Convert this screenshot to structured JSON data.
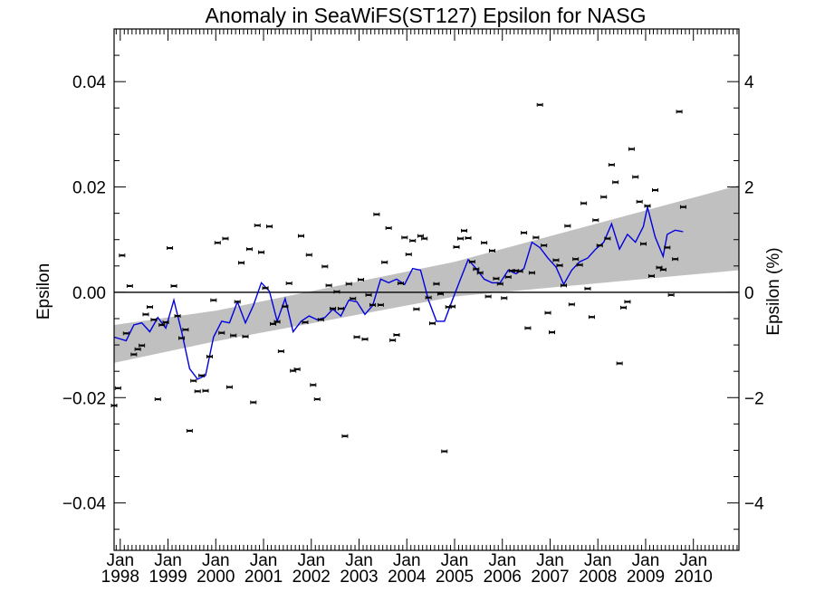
{
  "chart_data": {
    "type": "scatter",
    "title": "Anomaly in SeaWiFS(ST127) Epsilon for NASG",
    "ylabel": "Epsilon",
    "y2label": "Epsilon (%)",
    "xlim": [
      "1997-11-15",
      "2010-12-15"
    ],
    "ylim": [
      -0.049,
      0.05
    ],
    "y2lim": [
      -4.9,
      5.0
    ],
    "y_ticks": [
      {
        "value": 0.04,
        "label": "0.04"
      },
      {
        "value": 0.02,
        "label": "0.02"
      },
      {
        "value": 0.0,
        "label": "0.00"
      },
      {
        "value": -0.02,
        "label": "−0.02"
      },
      {
        "value": -0.04,
        "label": "−0.04"
      }
    ],
    "y2_ticks": [
      {
        "value": 4,
        "label": "4"
      },
      {
        "value": 2,
        "label": "2"
      },
      {
        "value": 0,
        "label": "0"
      },
      {
        "value": -2,
        "label": "−2"
      },
      {
        "value": -4,
        "label": "−4"
      }
    ],
    "x_ticks": [
      {
        "date": "1998-01-01",
        "month": "Jan",
        "year": "1998"
      },
      {
        "date": "1999-01-01",
        "month": "Jan",
        "year": "1999"
      },
      {
        "date": "2000-01-01",
        "month": "Jan",
        "year": "2000"
      },
      {
        "date": "2001-01-01",
        "month": "Jan",
        "year": "2001"
      },
      {
        "date": "2002-01-01",
        "month": "Jan",
        "year": "2002"
      },
      {
        "date": "2003-01-01",
        "month": "Jan",
        "year": "2003"
      },
      {
        "date": "2004-01-01",
        "month": "Jan",
        "year": "2004"
      },
      {
        "date": "2005-01-01",
        "month": "Jan",
        "year": "2005"
      },
      {
        "date": "2006-01-01",
        "month": "Jan",
        "year": "2006"
      },
      {
        "date": "2007-01-01",
        "month": "Jan",
        "year": "2007"
      },
      {
        "date": "2008-01-01",
        "month": "Jan",
        "year": "2008"
      },
      {
        "date": "2009-01-01",
        "month": "Jan",
        "year": "2009"
      },
      {
        "date": "2010-01-01",
        "month": "Jan",
        "year": "2010"
      }
    ],
    "grid": false,
    "zero_line": 0.0,
    "colors": {
      "points": "#000000",
      "smooth": "#0000dd",
      "band": "#c0c0c0"
    },
    "band": [
      {
        "x": "1997-11-15",
        "lower": -0.0134,
        "upper": -0.0062
      },
      {
        "x": "2000-01-01",
        "lower": -0.0093,
        "upper": -0.0035
      },
      {
        "x": "2005-01-01",
        "lower": -0.0008,
        "upper": 0.0058
      },
      {
        "x": "2010-12-15",
        "lower": 0.0042,
        "upper": 0.0203
      }
    ],
    "scatter_points": [
      {
        "x": "1997-11",
        "y": -0.0215
      },
      {
        "x": "1997-12",
        "y": -0.0182
      },
      {
        "x": "1998-01",
        "y": 0.007
      },
      {
        "x": "1998-02",
        "y": -0.0078
      },
      {
        "x": "1998-03",
        "y": 0.0012
      },
      {
        "x": "1998-04",
        "y": -0.0118
      },
      {
        "x": "1998-05",
        "y": -0.0108
      },
      {
        "x": "1998-06",
        "y": -0.0101
      },
      {
        "x": "1998-07",
        "y": -0.0042
      },
      {
        "x": "1998-08",
        "y": -0.0028
      },
      {
        "x": "1998-09",
        "y": -0.0052
      },
      {
        "x": "1998-10",
        "y": -0.0203
      },
      {
        "x": "1998-11",
        "y": -0.0062
      },
      {
        "x": "1998-12",
        "y": -0.0057
      },
      {
        "x": "1999-01",
        "y": 0.0084
      },
      {
        "x": "1999-02",
        "y": 0.0012
      },
      {
        "x": "1999-03",
        "y": -0.0045
      },
      {
        "x": "1999-04",
        "y": -0.0087
      },
      {
        "x": "1999-05",
        "y": -0.0071
      },
      {
        "x": "1999-06",
        "y": -0.0263
      },
      {
        "x": "1999-07",
        "y": -0.0168
      },
      {
        "x": "1999-08",
        "y": -0.0188
      },
      {
        "x": "1999-09",
        "y": -0.0158
      },
      {
        "x": "1999-10",
        "y": -0.0187
      },
      {
        "x": "1999-11",
        "y": -0.0122
      },
      {
        "x": "1999-12",
        "y": -0.0015
      },
      {
        "x": "2000-01",
        "y": 0.0094
      },
      {
        "x": "2000-02",
        "y": -0.0077
      },
      {
        "x": "2000-03",
        "y": 0.0102
      },
      {
        "x": "2000-04",
        "y": -0.018
      },
      {
        "x": "2000-05",
        "y": -0.0082
      },
      {
        "x": "2000-06",
        "y": -0.0018
      },
      {
        "x": "2000-07",
        "y": 0.0056
      },
      {
        "x": "2000-08",
        "y": -0.0084
      },
      {
        "x": "2000-09",
        "y": 0.0082
      },
      {
        "x": "2000-10",
        "y": -0.0209
      },
      {
        "x": "2000-11",
        "y": 0.0127
      },
      {
        "x": "2000-12",
        "y": 0.0076
      },
      {
        "x": "2001-01",
        "y": 0.0008
      },
      {
        "x": "2001-02",
        "y": 0.0125
      },
      {
        "x": "2001-03",
        "y": -0.006
      },
      {
        "x": "2001-04",
        "y": -0.0056
      },
      {
        "x": "2001-05",
        "y": -0.0112
      },
      {
        "x": "2001-06",
        "y": -0.0027
      },
      {
        "x": "2001-07",
        "y": 0.0017
      },
      {
        "x": "2001-08",
        "y": -0.0149
      },
      {
        "x": "2001-09",
        "y": -0.0146
      },
      {
        "x": "2001-10",
        "y": 0.0107
      },
      {
        "x": "2001-11",
        "y": -0.0057
      },
      {
        "x": "2001-12",
        "y": 0.0071
      },
      {
        "x": "2002-01",
        "y": -0.0176
      },
      {
        "x": "2002-02",
        "y": -0.0203
      },
      {
        "x": "2002-03",
        "y": -0.0052
      },
      {
        "x": "2002-04",
        "y": 0.0049
      },
      {
        "x": "2002-05",
        "y": 0.0013
      },
      {
        "x": "2002-06",
        "y": -0.0031
      },
      {
        "x": "2002-07",
        "y": 0.0001
      },
      {
        "x": "2002-08",
        "y": -0.0031
      },
      {
        "x": "2002-09",
        "y": -0.0273
      },
      {
        "x": "2002-10",
        "y": 0.0016
      },
      {
        "x": "2002-11",
        "y": -0.0012
      },
      {
        "x": "2002-12",
        "y": -0.0085
      },
      {
        "x": "2003-01",
        "y": 0.0024
      },
      {
        "x": "2003-02",
        "y": -0.0089
      },
      {
        "x": "2003-03",
        "y": -0.0005
      },
      {
        "x": "2003-04",
        "y": -0.0024
      },
      {
        "x": "2003-05",
        "y": 0.0148
      },
      {
        "x": "2003-06",
        "y": -0.0024
      },
      {
        "x": "2003-07",
        "y": 0.0057
      },
      {
        "x": "2003-08",
        "y": 0.0122
      },
      {
        "x": "2003-09",
        "y": -0.0091
      },
      {
        "x": "2003-10",
        "y": -0.0081
      },
      {
        "x": "2003-11",
        "y": 0.0017
      },
      {
        "x": "2003-12",
        "y": 0.0104
      },
      {
        "x": "2004-01",
        "y": 0.0072
      },
      {
        "x": "2004-02",
        "y": 0.0098
      },
      {
        "x": "2004-03",
        "y": -0.0032
      },
      {
        "x": "2004-04",
        "y": 0.0107
      },
      {
        "x": "2004-05",
        "y": 0.0102
      },
      {
        "x": "2004-06",
        "y": -0.001
      },
      {
        "x": "2004-07",
        "y": -0.0059
      },
      {
        "x": "2004-08",
        "y": 0.0016
      },
      {
        "x": "2004-09",
        "y": -0.0003
      },
      {
        "x": "2004-10",
        "y": -0.0302
      },
      {
        "x": "2004-11",
        "y": -0.0028
      },
      {
        "x": "2004-12",
        "y": -0.0027
      },
      {
        "x": "2005-01",
        "y": 0.0086
      },
      {
        "x": "2005-02",
        "y": 0.0102
      },
      {
        "x": "2005-03",
        "y": 0.0117
      },
      {
        "x": "2005-04",
        "y": 0.0103
      },
      {
        "x": "2005-05",
        "y": 0.0058
      },
      {
        "x": "2005-06",
        "y": 0.0044
      },
      {
        "x": "2005-07",
        "y": 0.0037
      },
      {
        "x": "2005-08",
        "y": 0.0094
      },
      {
        "x": "2005-09",
        "y": -0.0008
      },
      {
        "x": "2005-10",
        "y": 0.0079
      },
      {
        "x": "2005-11",
        "y": 0.0026
      },
      {
        "x": "2005-12",
        "y": 0.0016
      },
      {
        "x": "2006-01",
        "y": -0.0011
      },
      {
        "x": "2006-02",
        "y": 0.0029
      },
      {
        "x": "2006-03",
        "y": 0.0041
      },
      {
        "x": "2006-04",
        "y": 0.0041
      },
      {
        "x": "2006-05",
        "y": 0.004
      },
      {
        "x": "2006-06",
        "y": 0.0113
      },
      {
        "x": "2006-07",
        "y": -0.0068
      },
      {
        "x": "2006-08",
        "y": 0.0037
      },
      {
        "x": "2006-09",
        "y": 0.0104
      },
      {
        "x": "2006-10",
        "y": 0.0356
      },
      {
        "x": "2006-11",
        "y": 0.0089
      },
      {
        "x": "2006-12",
        "y": -0.0039
      },
      {
        "x": "2007-01",
        "y": -0.0076
      },
      {
        "x": "2007-02",
        "y": 0.0061
      },
      {
        "x": "2007-03",
        "y": 0.0051
      },
      {
        "x": "2007-04",
        "y": 0.0013
      },
      {
        "x": "2007-05",
        "y": 0.0126
      },
      {
        "x": "2007-06",
        "y": -0.0023
      },
      {
        "x": "2007-07",
        "y": 0.0063
      },
      {
        "x": "2007-08",
        "y": 0.0052
      },
      {
        "x": "2007-09",
        "y": 0.0169
      },
      {
        "x": "2007-10",
        "y": 0.0007
      },
      {
        "x": "2007-11",
        "y": -0.0047
      },
      {
        "x": "2007-12",
        "y": 0.0137
      },
      {
        "x": "2008-01",
        "y": 0.0089
      },
      {
        "x": "2008-02",
        "y": 0.0181
      },
      {
        "x": "2008-03",
        "y": 0.0102
      },
      {
        "x": "2008-04",
        "y": 0.0242
      },
      {
        "x": "2008-05",
        "y": 0.0209
      },
      {
        "x": "2008-06",
        "y": -0.0135
      },
      {
        "x": "2008-07",
        "y": -0.0029
      },
      {
        "x": "2008-08",
        "y": -0.0018
      },
      {
        "x": "2008-09",
        "y": 0.0272
      },
      {
        "x": "2008-10",
        "y": 0.0219
      },
      {
        "x": "2008-11",
        "y": 0.0172
      },
      {
        "x": "2008-12",
        "y": 0.0092
      },
      {
        "x": "2009-01",
        "y": 0.0164
      },
      {
        "x": "2009-02",
        "y": 0.0031
      },
      {
        "x": "2009-03",
        "y": 0.0194
      },
      {
        "x": "2009-04",
        "y": 0.0047
      },
      {
        "x": "2009-05",
        "y": 0.0043
      },
      {
        "x": "2009-06",
        "y": 0.0085
      },
      {
        "x": "2009-07",
        "y": -0.0005
      },
      {
        "x": "2009-08",
        "y": 0.0063
      },
      {
        "x": "2009-09",
        "y": 0.0343
      },
      {
        "x": "2009-10",
        "y": 0.0162
      }
    ],
    "smooth_line": [
      {
        "x": "1997-11",
        "y": -0.0085
      },
      {
        "x": "1998-02",
        "y": -0.0092
      },
      {
        "x": "1998-04",
        "y": -0.0062
      },
      {
        "x": "1998-06",
        "y": -0.0058
      },
      {
        "x": "1998-08",
        "y": -0.0075
      },
      {
        "x": "1998-10",
        "y": -0.0048
      },
      {
        "x": "1998-12",
        "y": -0.0068
      },
      {
        "x": "1999-02",
        "y": -0.0015
      },
      {
        "x": "1999-04",
        "y": -0.0075
      },
      {
        "x": "1999-06",
        "y": -0.0145
      },
      {
        "x": "1999-08",
        "y": -0.0165
      },
      {
        "x": "1999-10",
        "y": -0.0158
      },
      {
        "x": "1999-12",
        "y": -0.0085
      },
      {
        "x": "2000-02",
        "y": -0.0055
      },
      {
        "x": "2000-04",
        "y": -0.0058
      },
      {
        "x": "2000-06",
        "y": -0.0018
      },
      {
        "x": "2000-08",
        "y": -0.0058
      },
      {
        "x": "2000-10",
        "y": -0.0025
      },
      {
        "x": "2000-12",
        "y": 0.0018
      },
      {
        "x": "2001-02",
        "y": 0.0002
      },
      {
        "x": "2001-04",
        "y": -0.0055
      },
      {
        "x": "2001-06",
        "y": -0.0012
      },
      {
        "x": "2001-08",
        "y": -0.0075
      },
      {
        "x": "2001-10",
        "y": -0.0055
      },
      {
        "x": "2001-12",
        "y": -0.0045
      },
      {
        "x": "2002-02",
        "y": -0.0052
      },
      {
        "x": "2002-04",
        "y": -0.0048
      },
      {
        "x": "2002-06",
        "y": -0.0032
      },
      {
        "x": "2002-08",
        "y": -0.0045
      },
      {
        "x": "2002-10",
        "y": -0.0015
      },
      {
        "x": "2002-12",
        "y": -0.0018
      },
      {
        "x": "2003-02",
        "y": -0.0042
      },
      {
        "x": "2003-04",
        "y": -0.0025
      },
      {
        "x": "2003-06",
        "y": 0.0025
      },
      {
        "x": "2003-08",
        "y": 0.0018
      },
      {
        "x": "2003-10",
        "y": 0.0025
      },
      {
        "x": "2003-12",
        "y": 0.0015
      },
      {
        "x": "2004-02",
        "y": 0.0045
      },
      {
        "x": "2004-04",
        "y": 0.0042
      },
      {
        "x": "2004-06",
        "y": -0.0015
      },
      {
        "x": "2004-08",
        "y": -0.0055
      },
      {
        "x": "2004-10",
        "y": -0.0055
      },
      {
        "x": "2004-12",
        "y": -0.0015
      },
      {
        "x": "2005-02",
        "y": 0.0025
      },
      {
        "x": "2005-04",
        "y": 0.0062
      },
      {
        "x": "2005-06",
        "y": 0.0045
      },
      {
        "x": "2005-08",
        "y": 0.0025
      },
      {
        "x": "2005-10",
        "y": 0.0018
      },
      {
        "x": "2005-12",
        "y": 0.0018
      },
      {
        "x": "2006-02",
        "y": 0.0042
      },
      {
        "x": "2006-04",
        "y": 0.0035
      },
      {
        "x": "2006-06",
        "y": 0.0045
      },
      {
        "x": "2006-08",
        "y": 0.0095
      },
      {
        "x": "2006-10",
        "y": 0.0085
      },
      {
        "x": "2006-12",
        "y": 0.0065
      },
      {
        "x": "2007-02",
        "y": 0.0048
      },
      {
        "x": "2007-04",
        "y": 0.0015
      },
      {
        "x": "2007-06",
        "y": 0.0042
      },
      {
        "x": "2007-08",
        "y": 0.0058
      },
      {
        "x": "2007-10",
        "y": 0.0065
      },
      {
        "x": "2007-12",
        "y": 0.0082
      },
      {
        "x": "2008-02",
        "y": 0.0095
      },
      {
        "x": "2008-04",
        "y": 0.013
      },
      {
        "x": "2008-06",
        "y": 0.0082
      },
      {
        "x": "2008-08",
        "y": 0.011
      },
      {
        "x": "2008-10",
        "y": 0.0095
      },
      {
        "x": "2008-12",
        "y": 0.0125
      },
      {
        "x": "2009-01",
        "y": 0.0162
      },
      {
        "x": "2009-03",
        "y": 0.0105
      },
      {
        "x": "2009-05",
        "y": 0.0068
      },
      {
        "x": "2009-06",
        "y": 0.011
      },
      {
        "x": "2009-08",
        "y": 0.0118
      },
      {
        "x": "2009-10",
        "y": 0.0115
      }
    ]
  }
}
